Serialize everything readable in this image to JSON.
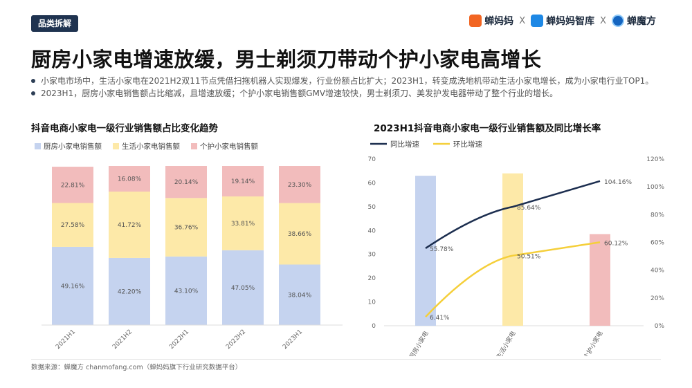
{
  "header": {
    "tag": "品类拆解",
    "brands": [
      "蝉妈妈",
      "蝉妈妈智库",
      "蝉魔方"
    ],
    "separator": "X",
    "title": "厨房小家电增速放缓，男士剃须刀带动个护小家电高增长"
  },
  "bullets": [
    "小家电市场中，生活小家电在2021H2双11节点凭借扫拖机器人实现爆发，行业份额占比扩大；2023H1，转变成洗地机带动生活小家电增长，成为小家电行业TOP1。",
    "2023H1，厨房小家电销售额占比缩减，且增速放缓；个护小家电销售额GMV增速较快，男士剃须刀、美发护发电器带动了整个行业的增长。"
  ],
  "footer": "数据来源：蝉魔方 chanmofang.com（蝉妈妈旗下行业研究数据平台）",
  "colors": {
    "kitchen": "#c5d3ef",
    "life": "#fde9a8",
    "personal": "#f2bcbc",
    "yoy": "#1c2e4f",
    "mom": "#f5cf3a"
  },
  "chart_data": [
    {
      "type": "bar",
      "stacked": true,
      "title": "抖音电商小家电一级行业销售额占比变化趋势",
      "categories": [
        "2021H1",
        "2021H2",
        "2022H1",
        "2022H2",
        "2023H1"
      ],
      "series": [
        {
          "name": "厨房小家电销售额",
          "values": [
            49.16,
            42.2,
            43.1,
            47.05,
            38.04
          ],
          "labels": [
            "49.16%",
            "42.20%",
            "43.10%",
            "47.05%",
            "38.04%"
          ]
        },
        {
          "name": "生活小家电销售额",
          "values": [
            27.58,
            41.72,
            36.76,
            33.81,
            38.66
          ],
          "labels": [
            "27.58%",
            "41.72%",
            "36.76%",
            "33.81%",
            "38.66%"
          ]
        },
        {
          "name": "个护小家电销售额",
          "values": [
            22.81,
            16.08,
            20.14,
            19.14,
            23.3
          ],
          "labels": [
            "22.81%",
            "16.08%",
            "20.14%",
            "19.14%",
            "23.30%"
          ]
        }
      ],
      "legend_position": "top-left",
      "ylim": [
        0,
        100
      ]
    },
    {
      "type": "bar+line",
      "title": "2023H1抖音电商小家电一级行业销售额及同比增长率",
      "categories": [
        "厨房小家电",
        "生活小家电",
        "个护小家电"
      ],
      "bars": {
        "values": [
          63,
          64,
          38.5
        ]
      },
      "lines": [
        {
          "name": "同比增速",
          "values": [
            55.78,
            85.64,
            104.16
          ],
          "labels": [
            "55.78%",
            "85.64%",
            "104.16%"
          ]
        },
        {
          "name": "环比增速",
          "values": [
            6.41,
            50.51,
            60.12
          ],
          "labels": [
            "6.41%",
            "50.51%",
            "60.12%"
          ]
        }
      ],
      "y_left": {
        "ticks": [
          "0",
          "10",
          "20",
          "30",
          "40",
          "50",
          "60",
          "70"
        ],
        "range": [
          0,
          70
        ]
      },
      "y_right": {
        "ticks": [
          "0%",
          "20%",
          "40%",
          "60%",
          "80%",
          "100%",
          "120%"
        ],
        "range": [
          0,
          120
        ]
      },
      "legend_position": "top-left"
    }
  ]
}
